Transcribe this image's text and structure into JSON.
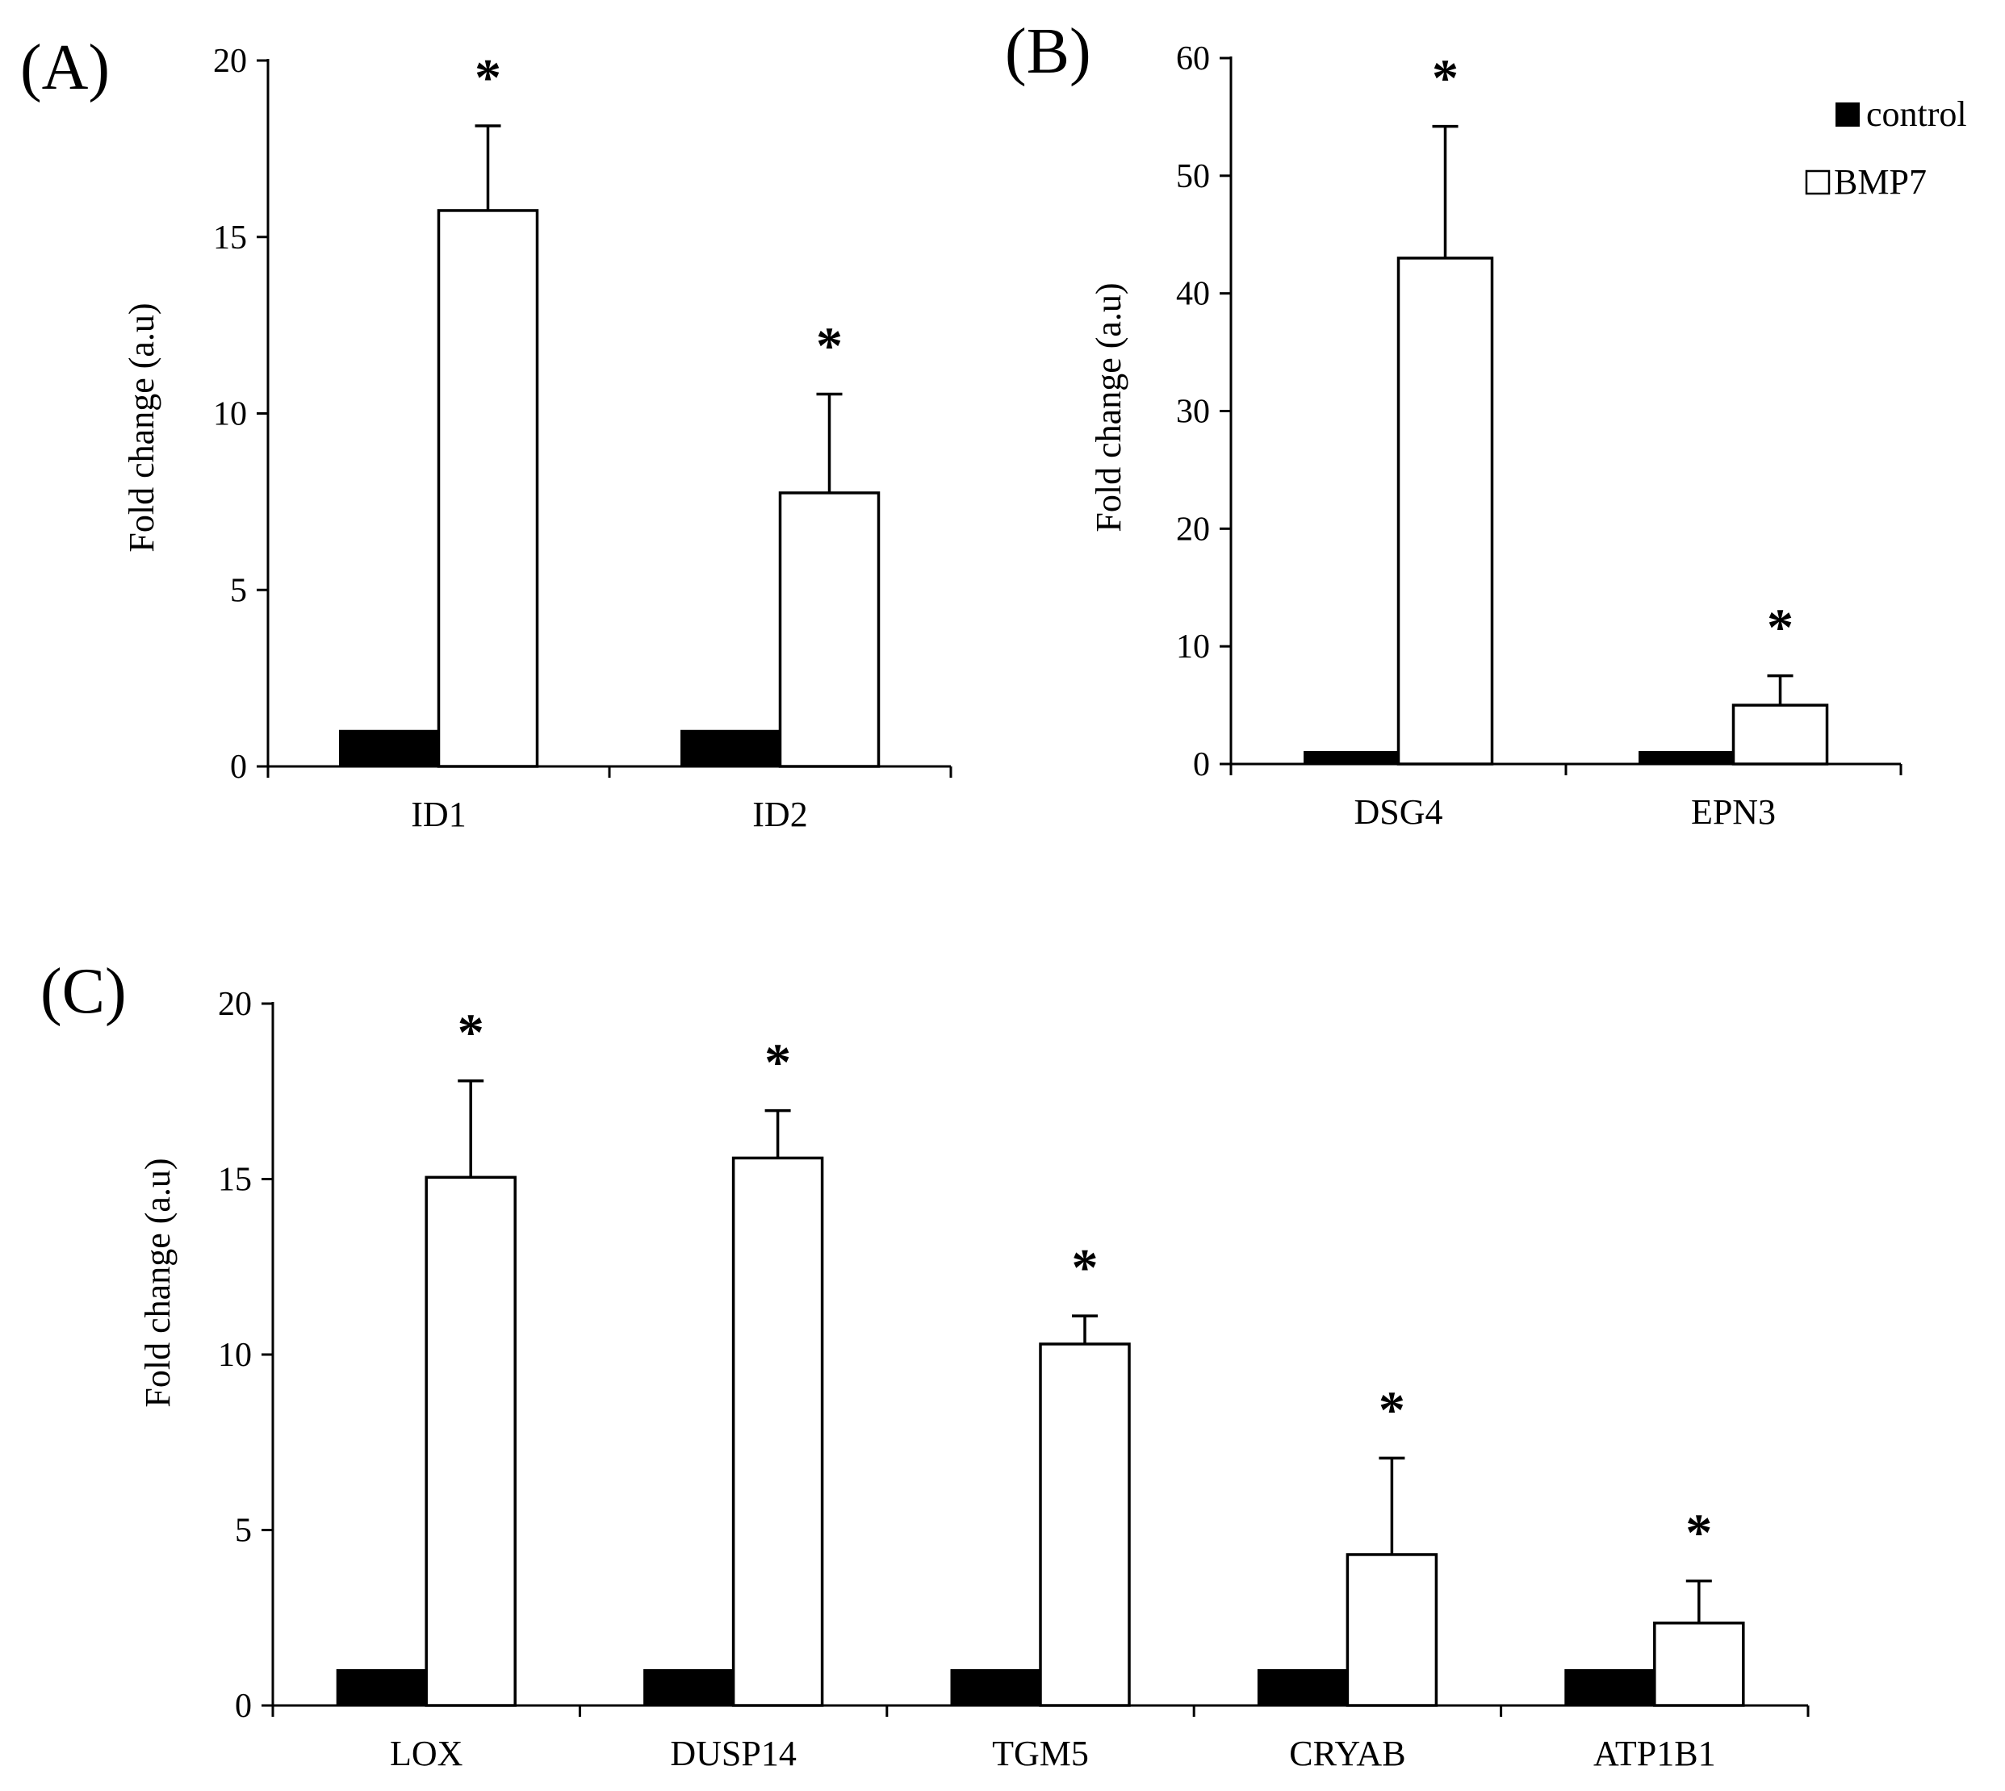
{
  "chart_data": [
    {
      "panel": "(A)",
      "type": "bar",
      "ylabel": "Fold change (a.u)",
      "ylim": [
        0,
        20
      ],
      "yticks": [
        0,
        5,
        10,
        15,
        20
      ],
      "categories": [
        "ID1",
        "ID2"
      ],
      "series": [
        {
          "name": "control",
          "color": "#000000",
          "values": [
            1,
            1
          ],
          "errors": [
            0,
            0
          ]
        },
        {
          "name": "BMP7",
          "color": "#ffffff",
          "values": [
            15.75,
            7.75
          ],
          "errors": [
            2.4,
            2.8
          ]
        }
      ],
      "significance": [
        "*",
        "*"
      ]
    },
    {
      "panel": "(B)",
      "type": "bar",
      "ylabel": "Fold change (a.u)",
      "ylim": [
        0,
        60
      ],
      "yticks": [
        0,
        10,
        20,
        30,
        40,
        50,
        60
      ],
      "categories": [
        "DSG4",
        "EPN3"
      ],
      "series": [
        {
          "name": "control",
          "color": "#000000",
          "values": [
            1,
            1
          ],
          "errors": [
            0,
            0
          ]
        },
        {
          "name": "BMP7",
          "color": "#ffffff",
          "values": [
            43,
            5
          ],
          "errors": [
            11.2,
            2.5
          ]
        }
      ],
      "significance": [
        "*",
        "*"
      ],
      "legend": {
        "position": "top-right",
        "entries": [
          "control",
          "BMP7"
        ]
      }
    },
    {
      "panel": "(C)",
      "type": "bar",
      "ylabel": "Fold change (a.u)",
      "ylim": [
        0,
        20
      ],
      "yticks": [
        0,
        5,
        10,
        15,
        20
      ],
      "categories": [
        "LOX",
        "DUSP14",
        "TGM5",
        "CRYAB",
        "ATP1B1"
      ],
      "series": [
        {
          "name": "control",
          "color": "#000000",
          "values": [
            1,
            1,
            1,
            1,
            1
          ],
          "errors": [
            0,
            0,
            0,
            0,
            0
          ]
        },
        {
          "name": "BMP7",
          "color": "#ffffff",
          "values": [
            15.05,
            15.6,
            10.3,
            4.3,
            2.35
          ],
          "errors": [
            2.75,
            1.35,
            0.8,
            2.75,
            1.2
          ]
        }
      ],
      "significance": [
        "*",
        "*",
        "*",
        "*",
        "*"
      ]
    }
  ]
}
